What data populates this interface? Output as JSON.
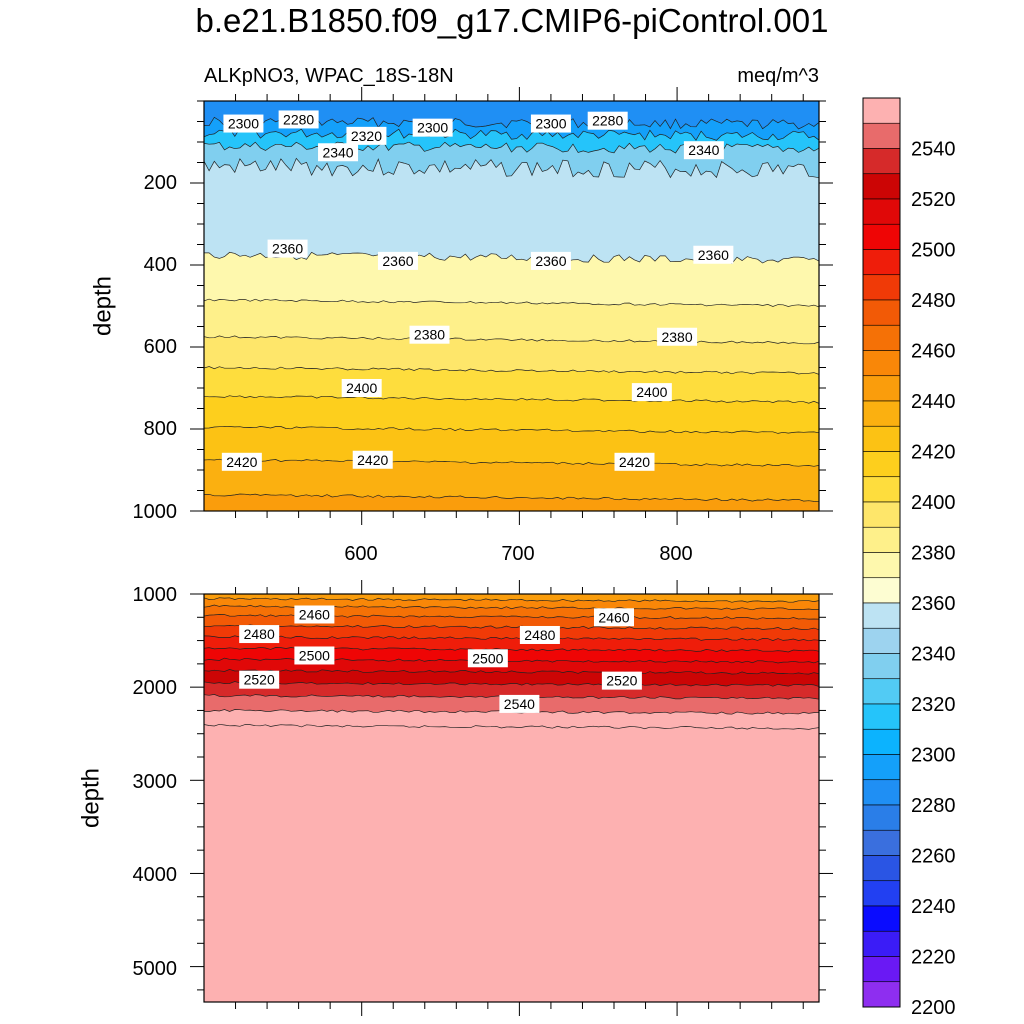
{
  "title": "b.e21.B1850.f09_g17.CMIP6-piControl.001",
  "colors": {
    "bands": [
      "#8e2ef0",
      "#6a19f4",
      "#3b1cf7",
      "#0a0cff",
      "#2240f2",
      "#2a55e4",
      "#3a6fde",
      "#2a7ee8",
      "#1f8ff4",
      "#14a0fa",
      "#0cb3fe",
      "#25c4fa",
      "#52cbf4",
      "#80cfef",
      "#9dd3ef",
      "#bde3f3",
      "#fdfdd2",
      "#fef8ad",
      "#fef08a",
      "#fee66a",
      "#fedd3d",
      "#fdcf1d",
      "#fcc214",
      "#fbb010",
      "#fa9d0c",
      "#f98708",
      "#f57106",
      "#f25a06",
      "#f03a07",
      "#ef1d0a",
      "#ef0505",
      "#e00808",
      "#cc0505",
      "#d62a2a",
      "#e86b6b",
      "#fdb1b1"
    ],
    "contour_line": "#222222"
  },
  "colorbar": {
    "labels": [
      "2540",
      "2520",
      "2500",
      "2480",
      "2460",
      "2440",
      "2420",
      "2400",
      "2380",
      "2360",
      "2340",
      "2320",
      "2300",
      "2280",
      "2260",
      "2240",
      "2220",
      "2200"
    ]
  },
  "chart_data": [
    {
      "type": "heatmap",
      "panel": "upper",
      "title_left": "ALKpNO3, WPAC_18S-18N",
      "title_right": "meq/m^3",
      "ylabel": "depth",
      "xlabel": "",
      "x_range": [
        500,
        890
      ],
      "y_range": [
        0,
        1000
      ],
      "y_reversed": true,
      "xticks": [
        "600",
        "700",
        "800"
      ],
      "yticks": [
        "200",
        "400",
        "600",
        "800",
        "1000"
      ],
      "contour_interval": 10,
      "isolines": [
        {
          "level": 2280,
          "depth": 50
        },
        {
          "level": 2300,
          "depth": 78
        },
        {
          "level": 2320,
          "depth": 110
        },
        {
          "level": 2340,
          "depth": 160
        },
        {
          "level": 2360,
          "depth": 375
        },
        {
          "level": 2370,
          "depth": 485
        },
        {
          "level": 2380,
          "depth": 575
        },
        {
          "level": 2390,
          "depth": 650
        },
        {
          "level": 2400,
          "depth": 720
        },
        {
          "level": 2410,
          "depth": 795
        },
        {
          "level": 2420,
          "depth": 875
        },
        {
          "level": 2430,
          "depth": 960
        }
      ],
      "contour_labels": [
        {
          "text": "2300",
          "x": 525,
          "depth": 55
        },
        {
          "text": "2280",
          "x": 560,
          "depth": 45
        },
        {
          "text": "2320",
          "x": 603,
          "depth": 85
        },
        {
          "text": "2300",
          "x": 645,
          "depth": 65
        },
        {
          "text": "2300",
          "x": 720,
          "depth": 55
        },
        {
          "text": "2280",
          "x": 756,
          "depth": 48
        },
        {
          "text": "2340",
          "x": 585,
          "depth": 125
        },
        {
          "text": "2340",
          "x": 817,
          "depth": 120
        },
        {
          "text": "2360",
          "x": 553,
          "depth": 360
        },
        {
          "text": "2360",
          "x": 623,
          "depth": 390
        },
        {
          "text": "2360",
          "x": 720,
          "depth": 390
        },
        {
          "text": "2360",
          "x": 823,
          "depth": 375
        },
        {
          "text": "2380",
          "x": 643,
          "depth": 570
        },
        {
          "text": "2380",
          "x": 800,
          "depth": 575
        },
        {
          "text": "2400",
          "x": 600,
          "depth": 700
        },
        {
          "text": "2400",
          "x": 784,
          "depth": 710
        },
        {
          "text": "2420",
          "x": 524,
          "depth": 880
        },
        {
          "text": "2420",
          "x": 607,
          "depth": 875
        },
        {
          "text": "2420",
          "x": 773,
          "depth": 880
        }
      ]
    },
    {
      "type": "heatmap",
      "panel": "lower",
      "ylabel": "depth",
      "xlabel": "",
      "x_range": [
        500,
        890
      ],
      "y_range": [
        1000,
        5380
      ],
      "y_reversed": true,
      "yticks": [
        "1000",
        "2000",
        "3000",
        "4000",
        "5000"
      ],
      "contour_interval": 10,
      "isolines": [
        {
          "level": 2440,
          "depth": 1050
        },
        {
          "level": 2450,
          "depth": 1130
        },
        {
          "level": 2460,
          "depth": 1230
        },
        {
          "level": 2470,
          "depth": 1340
        },
        {
          "level": 2480,
          "depth": 1460
        },
        {
          "level": 2490,
          "depth": 1580
        },
        {
          "level": 2500,
          "depth": 1700
        },
        {
          "level": 2510,
          "depth": 1820
        },
        {
          "level": 2520,
          "depth": 1950
        },
        {
          "level": 2530,
          "depth": 2090
        },
        {
          "level": 2540,
          "depth": 2250
        },
        {
          "level": 2550,
          "depth": 2410
        }
      ],
      "contour_labels": [
        {
          "text": "2460",
          "x": 570,
          "depth": 1220
        },
        {
          "text": "2460",
          "x": 760,
          "depth": 1250
        },
        {
          "text": "2480",
          "x": 535,
          "depth": 1430
        },
        {
          "text": "2480",
          "x": 713,
          "depth": 1440
        },
        {
          "text": "2500",
          "x": 570,
          "depth": 1660
        },
        {
          "text": "2500",
          "x": 680,
          "depth": 1690
        },
        {
          "text": "2520",
          "x": 535,
          "depth": 1920
        },
        {
          "text": "2520",
          "x": 765,
          "depth": 1930
        },
        {
          "text": "2540",
          "x": 700,
          "depth": 2180
        }
      ]
    }
  ]
}
